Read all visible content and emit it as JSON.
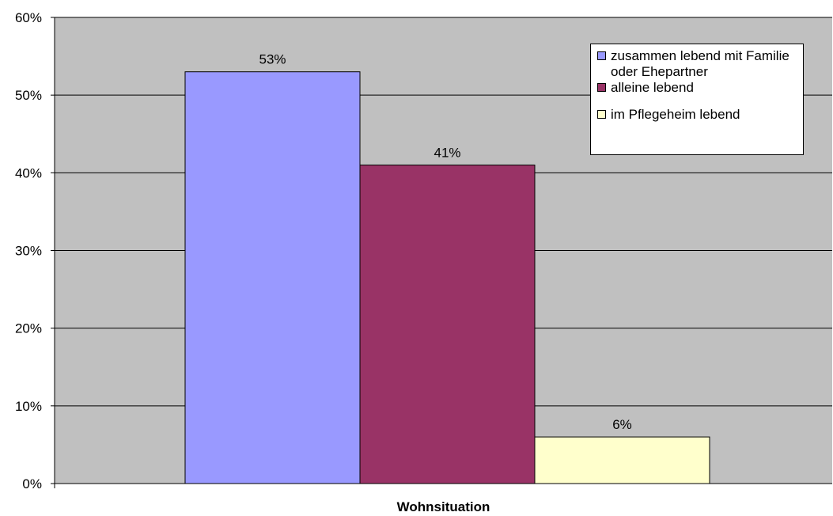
{
  "chart_data": {
    "type": "bar",
    "categories": [
      "zusammen lebend mit Familie oder Ehepartner",
      "alleine lebend",
      "im Pflegeheim lebend"
    ],
    "values": [
      53,
      41,
      6
    ],
    "data_labels": [
      "53%",
      "41%",
      "6%"
    ],
    "colors": [
      "#9999ff",
      "#993366",
      "#ffffcc"
    ],
    "ylim": [
      0,
      60
    ],
    "yticks": [
      "0%",
      "10%",
      "20%",
      "30%",
      "40%",
      "50%",
      "60%"
    ],
    "ytick_values": [
      0,
      10,
      20,
      30,
      40,
      50,
      60
    ],
    "xlabel": "Wohnsituation",
    "grid": true,
    "plot_background": "#c0c0c0",
    "legend_position": "top-right"
  },
  "legend": {
    "items": [
      {
        "label": "zusammen lebend mit Familie oder Ehepartner"
      },
      {
        "label": "alleine lebend"
      },
      {
        "label": "im Pflegeheim lebend"
      }
    ]
  }
}
